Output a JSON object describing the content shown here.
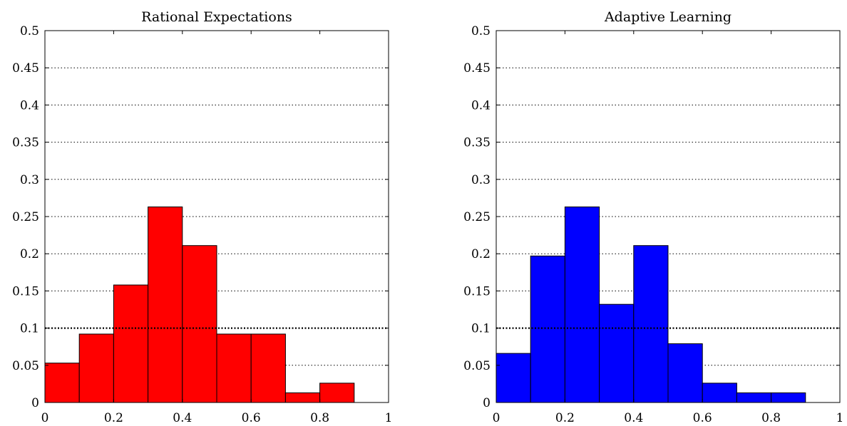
{
  "chart_data": [
    {
      "type": "bar",
      "title": "Rational Expectations",
      "bin_edges": [
        0,
        0.1,
        0.2,
        0.3,
        0.4,
        0.5,
        0.6,
        0.7,
        0.8,
        0.9,
        1.0
      ],
      "values": [
        0.053,
        0.092,
        0.158,
        0.263,
        0.211,
        0.092,
        0.092,
        0.013,
        0.026,
        0
      ],
      "bar_color": "#ff0000",
      "reference_line": 0.1,
      "xlim": [
        0,
        1
      ],
      "ylim": [
        0,
        0.5
      ],
      "x_ticks": [
        0,
        0.2,
        0.4,
        0.6,
        0.8,
        1
      ],
      "x_tick_labels": [
        "0",
        "0.2",
        "0.4",
        "0.6",
        "0.8",
        "1"
      ],
      "y_ticks": [
        0,
        0.05,
        0.1,
        0.15,
        0.2,
        0.25,
        0.3,
        0.35,
        0.4,
        0.45,
        0.5
      ],
      "y_tick_labels": [
        "0",
        "0.05",
        "0.1",
        "0.15",
        "0.2",
        "0.25",
        "0.3",
        "0.35",
        "0.4",
        "0.45",
        "0.5"
      ],
      "grid": "horizontal-dotted",
      "xlabel": "",
      "ylabel": ""
    },
    {
      "type": "bar",
      "title": "Adaptive Learning",
      "bin_edges": [
        0,
        0.1,
        0.2,
        0.3,
        0.4,
        0.5,
        0.6,
        0.7,
        0.8,
        0.9,
        1.0
      ],
      "values": [
        0.066,
        0.197,
        0.263,
        0.132,
        0.211,
        0.079,
        0.026,
        0.013,
        0.013,
        0
      ],
      "bar_color": "#0000ff",
      "reference_line": 0.1,
      "xlim": [
        0,
        1
      ],
      "ylim": [
        0,
        0.5
      ],
      "x_ticks": [
        0,
        0.2,
        0.4,
        0.6,
        0.8,
        1
      ],
      "x_tick_labels": [
        "0",
        "0.2",
        "0.4",
        "0.6",
        "0.8",
        "1"
      ],
      "y_ticks": [
        0,
        0.05,
        0.1,
        0.15,
        0.2,
        0.25,
        0.3,
        0.35,
        0.4,
        0.45,
        0.5
      ],
      "y_tick_labels": [
        "0",
        "0.05",
        "0.1",
        "0.15",
        "0.2",
        "0.25",
        "0.3",
        "0.35",
        "0.4",
        "0.45",
        "0.5"
      ],
      "grid": "horizontal-dotted",
      "xlabel": "",
      "ylabel": ""
    }
  ]
}
